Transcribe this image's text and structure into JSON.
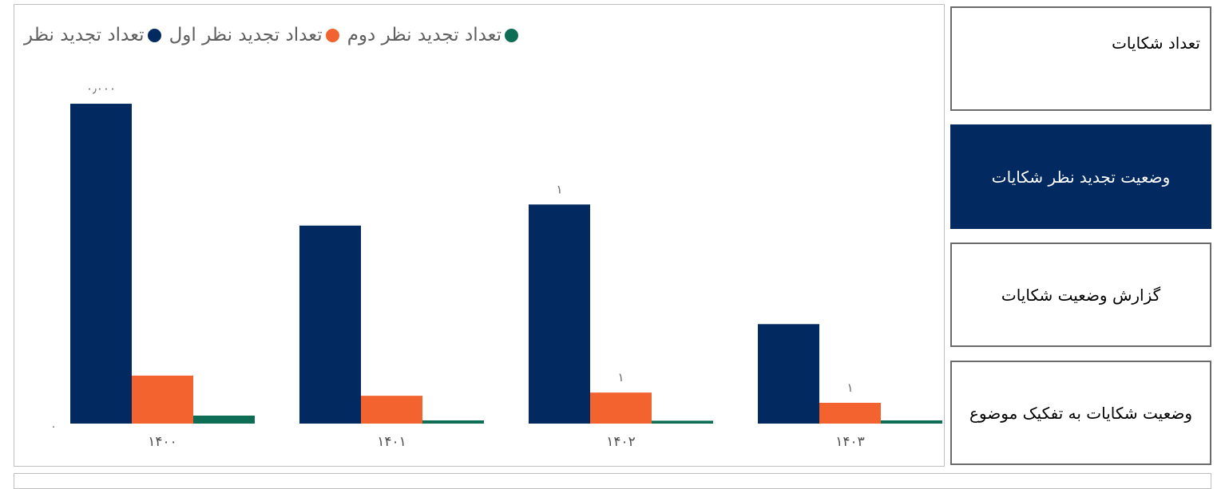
{
  "sidebar": {
    "items": [
      {
        "label": "تعداد شکایات",
        "active": false
      },
      {
        "label": "وضعیت تجدید نظر شکایات",
        "active": true
      },
      {
        "label": "گزارش وضعیت شکایات",
        "active": false
      },
      {
        "label": "وضعیت شکایات به تفکیک موضوع",
        "active": false
      }
    ]
  },
  "colors": {
    "series1": "#022a60",
    "series2": "#f26330",
    "series3": "#0e6e55",
    "active_button": "#022a60"
  },
  "chart_data": {
    "type": "bar",
    "categories": [
      "۱۴۰۰",
      "۱۴۰۱",
      "۱۴۰۲",
      "۱۴۰۳"
    ],
    "series": [
      {
        "name": "تعداد تجدید نظر",
        "values": [
          1000,
          619,
          685,
          311
        ]
      },
      {
        "name": "تعداد تجدید نظر اول",
        "values": [
          150,
          87,
          97,
          65
        ]
      },
      {
        "name": "تعداد تجدید نظر دوم",
        "values": [
          25,
          10,
          9,
          10
        ]
      }
    ],
    "data_labels": [
      [
        "۰٫۰۰۰",
        "",
        ""
      ],
      [
        "",
        "",
        ""
      ],
      [
        "۱",
        "۱",
        ""
      ],
      [
        "",
        "۱",
        ""
      ]
    ],
    "y_tick_labels": [
      "۰"
    ],
    "ylim": [
      0,
      1050
    ],
    "legend_position": "top-left",
    "grid": false
  }
}
